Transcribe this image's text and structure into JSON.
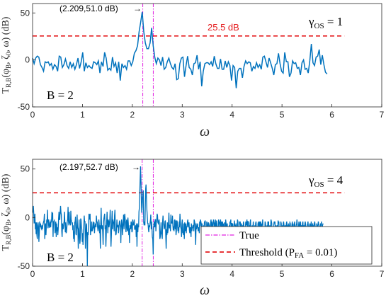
{
  "chart_data": [
    {
      "type": "line",
      "xlabel": "ω",
      "ylabel": "T_{R,B}(φ_B, ζ_0, ω) (dB)",
      "xlim": [
        0,
        7
      ],
      "ylim": [
        -50,
        60
      ],
      "xticks": [
        "0",
        "1",
        "2",
        "3",
        "4",
        "5",
        "6",
        "7"
      ],
      "yticks": [
        "-50",
        "0",
        "50"
      ],
      "grid": false,
      "series": [
        {
          "kind": "spectrum",
          "x_start": 0,
          "x_step": 0.0314,
          "values": [
            2,
            -4,
            2,
            4,
            3,
            -5,
            -8,
            -12,
            -2,
            -3,
            -2,
            -6,
            -4,
            -10,
            -5,
            -7,
            -12,
            4,
            3,
            -8,
            -5,
            1,
            -6,
            -9,
            -2,
            -8,
            -4,
            -10,
            -5,
            2,
            -9,
            -2,
            8,
            -12,
            -3,
            -8,
            -6,
            -8,
            -9,
            -2,
            -3,
            -5,
            -1,
            -14,
            -2,
            -7,
            8,
            2,
            -11,
            -9,
            -11,
            3,
            -7,
            -3,
            -14,
            -2,
            -22,
            -4,
            -8,
            -6,
            -10,
            -1,
            -1,
            -6,
            -2,
            7,
            10,
            15,
            30,
            40,
            51,
            30,
            18,
            12,
            12,
            18,
            34,
            15,
            3,
            -4,
            2,
            0,
            -6,
            3,
            -10,
            -8,
            -2,
            2,
            -4,
            -8,
            -10,
            -4,
            -21,
            -20,
            -4,
            2,
            3,
            -18,
            -6,
            4,
            -8,
            -10,
            -16,
            -4,
            -3,
            5,
            -10,
            -2,
            -28,
            -12,
            -4,
            -3,
            -3,
            -5,
            -2,
            -7,
            4,
            -4,
            -9,
            -9,
            1,
            -10,
            -10,
            -1,
            -8,
            -2,
            -6,
            -22,
            -6,
            -8,
            -30,
            -12,
            -9,
            -9,
            -19,
            -7,
            -1,
            -4,
            -2,
            -3,
            -12,
            -7,
            -9,
            -3,
            -8,
            -5,
            -10,
            3,
            4,
            -2,
            -8,
            2,
            -3,
            -9,
            -16,
            -5,
            -4,
            7,
            -4,
            -12,
            -14,
            8,
            -2,
            -2,
            -18,
            -14,
            -1,
            -4,
            -3,
            -9,
            -8,
            -16,
            -3,
            0,
            -10,
            -9,
            -14,
            -1,
            17,
            -3,
            -6,
            3,
            4,
            11,
            -5,
            5,
            -5,
            -13,
            -15
          ]
        },
        {
          "kind": "true",
          "x": [
            2.209,
            2.42
          ]
        },
        {
          "kind": "threshold",
          "y": 25.5
        }
      ],
      "annotations": {
        "peak": {
          "x": 2.209,
          "y": 51.0,
          "text": "(2.209,51.0 dB)"
        },
        "threshold_text": "25.5 dB",
        "gamma_text": "γOS = 1",
        "b_text": "B = 2"
      }
    },
    {
      "type": "line",
      "xlabel": "ω",
      "ylabel": "T_{R,B}(φ_B, ζ_0, ω) (dB)",
      "xlim": [
        0,
        7
      ],
      "ylim": [
        -50,
        60
      ],
      "xticks": [
        "0",
        "1",
        "2",
        "3",
        "4",
        "5",
        "6",
        "7"
      ],
      "yticks": [
        "-50",
        "0",
        "50"
      ],
      "grid": false,
      "series": [
        {
          "kind": "spectrum",
          "x_start": 0,
          "x_step": 0.0079,
          "values": [
            5,
            8,
            12,
            4,
            -6,
            -2,
            4,
            -12,
            -5,
            -17,
            -5,
            -18,
            -22,
            -8,
            -5,
            -9,
            -25,
            -15,
            -4,
            -10,
            -6,
            -8,
            -11,
            -12,
            -8,
            -12,
            -8,
            -6,
            -4,
            -3,
            4,
            -22,
            -12,
            -6,
            -18,
            -8,
            -2,
            -5,
            8,
            -11,
            -3,
            -2,
            -10,
            -10,
            -6,
            -4,
            -10,
            -2,
            -5,
            6,
            -2,
            5,
            -20,
            -5,
            -4,
            -3,
            -7,
            -16,
            -8,
            -4,
            -20,
            -6,
            -14,
            -10,
            -18,
            -12,
            -1,
            6,
            -2,
            -2,
            5,
            12,
            5,
            3,
            -14,
            -20,
            -6,
            -12,
            -11,
            -6,
            -4,
            6,
            -6,
            -15,
            -5,
            -16,
            -15,
            -10,
            -4,
            -2,
            11,
            -3,
            -8,
            6,
            -6,
            -5,
            -8,
            7,
            -2,
            -4,
            -6,
            -5,
            -13,
            -8,
            -22,
            -14,
            -25,
            -5,
            -4,
            1,
            -17,
            -18,
            -10,
            3,
            -10,
            -12,
            -32,
            -13,
            -2,
            -20,
            -27,
            -22,
            -1,
            -2,
            -10,
            -12,
            -25,
            -16,
            -28,
            -14,
            -10,
            2,
            -4,
            -4,
            -32,
            -20,
            -8,
            -6,
            -22,
            -50,
            -15,
            -18,
            -10,
            4,
            1,
            -2,
            4,
            -18,
            -12,
            -14,
            -4,
            -14,
            -13,
            -11,
            -4,
            -11,
            -5,
            -16,
            -10,
            -8,
            -6,
            -10,
            2,
            -5,
            -4,
            -10,
            -14,
            -11,
            -2,
            -6,
            -16,
            -8,
            -32,
            -6,
            10,
            -10,
            -12,
            -8,
            -15,
            -28,
            -6,
            -1,
            2,
            4,
            -12,
            -8,
            -30,
            -18,
            -4,
            6,
            -5,
            -16,
            -2,
            -4,
            -10,
            -6,
            -1,
            8,
            -14,
            -30,
            -18,
            -4,
            7,
            -12,
            -2,
            -6,
            -4,
            -14,
            2,
            8,
            -10,
            -18,
            -17,
            -11,
            -2,
            -10,
            -8,
            -8,
            -16,
            -12,
            -5,
            -3,
            -7,
            -10,
            -26,
            -8,
            -2,
            -6,
            -18,
            -10,
            -4,
            3,
            -12,
            -2,
            4,
            -2,
            -9,
            -15,
            -4,
            -2,
            -12,
            -14,
            0,
            -6,
            -18,
            -11,
            -26,
            -8,
            -10,
            -12,
            -4,
            -6,
            -15,
            -14,
            -2,
            -6,
            -8,
            -6,
            -2,
            -12,
            -12,
            -10,
            -8,
            -20,
            -6,
            -30,
            -6,
            -15,
            -8,
            -10,
            6,
            10,
            25,
            40,
            52.7,
            38,
            18,
            5,
            10,
            20,
            25,
            28,
            -5,
            -8,
            -4,
            -8,
            10,
            30,
            34,
            20,
            8,
            2,
            -6,
            -6,
            -12,
            -15,
            -8,
            -10,
            -6,
            -3,
            3,
            -12,
            -4,
            -12,
            -20,
            -22,
            -38,
            -12,
            -6,
            -4,
            -10,
            -2,
            -2,
            -14,
            -5,
            -3,
            4,
            2,
            -5,
            -6,
            -4,
            -2,
            -8,
            -22,
            -20,
            -14,
            -5,
            -16,
            -18,
            -22,
            -4,
            2,
            -6,
            -8,
            -12,
            -10,
            -4,
            -3,
            -20,
            -32,
            -12,
            -18,
            -5,
            -16,
            -12,
            -4,
            5,
            -11,
            -8,
            -8,
            -14,
            3,
            -6,
            -4,
            -6,
            2,
            -8,
            -13,
            -9,
            -14,
            -3,
            -2,
            -12,
            -3,
            -18,
            -14,
            -3,
            -4,
            -9,
            -14,
            -10,
            -16,
            -4,
            -10,
            4,
            -4,
            -10,
            -12,
            -20,
            -6,
            -2,
            -16,
            -14,
            -18,
            -6,
            -22,
            -5,
            -10,
            -14,
            -6,
            -16,
            -9,
            -10,
            -4,
            -2,
            -8,
            -10,
            -5,
            -13,
            -16,
            -10,
            -12,
            -20,
            -6,
            -14,
            -11,
            -10,
            -8,
            -8,
            -14,
            -2,
            -4,
            -6,
            -18,
            -28,
            -6,
            -12,
            -10,
            -8,
            -6,
            -14,
            -11,
            -10,
            -16,
            -4,
            -9,
            -2,
            -4,
            -6,
            -20,
            -6,
            -11,
            -12,
            -16,
            -8,
            -12,
            -5,
            -4,
            -3,
            -10,
            -16,
            -18,
            -4,
            -6,
            -10,
            -20,
            -5,
            -6,
            -8,
            -12,
            -22,
            -9,
            -4,
            -2,
            -14,
            -4,
            -6,
            -12,
            -10,
            -2,
            -4,
            -6,
            -18,
            -7,
            -2,
            -12,
            -14,
            -3,
            -8,
            -10,
            -16,
            -12,
            -2,
            -5,
            -4,
            -12,
            -8,
            -2,
            -8,
            -10,
            -4,
            -11,
            -4,
            -12,
            -6,
            -14,
            -20,
            -5,
            -8,
            -12,
            -2,
            -6,
            -10,
            -10,
            -6,
            -14,
            -12,
            -22,
            -16,
            -8,
            -12,
            -4,
            -6,
            -2,
            -20,
            -6,
            -6,
            -18,
            -6,
            -15,
            -12,
            -10,
            -3,
            -8,
            -8,
            -18,
            -6,
            -11,
            -14,
            -10,
            -2,
            -4,
            -22,
            -14,
            -12,
            -4,
            -6,
            -4,
            -12,
            -14,
            -6,
            -10,
            -30,
            -8,
            -14,
            -4,
            -6,
            -12,
            -15,
            -22,
            -10,
            -4,
            -8,
            -6,
            -2,
            -16,
            -4,
            -4,
            -5,
            -18,
            -8,
            -14,
            -6,
            -2,
            -15,
            -10,
            -16,
            -8,
            -12,
            -12,
            -4,
            -10,
            -12,
            -20,
            -8,
            -18,
            -6,
            -4,
            -10,
            -16,
            -14,
            -12,
            -6,
            -4,
            -8,
            -12,
            -5,
            -4,
            -12,
            -4,
            -10,
            -16,
            -6,
            -8,
            -2,
            -14,
            -12,
            -18,
            -14,
            -16,
            -4,
            -6,
            -10,
            -12,
            -22,
            -8,
            -20,
            -4,
            -6,
            -4,
            -20,
            -12,
            -8,
            -16,
            -10,
            -2,
            -4,
            -6,
            -30,
            -10,
            -12,
            -14,
            -8,
            -4,
            -6,
            -4,
            -12,
            -14,
            -8,
            -20,
            -10,
            -8,
            -12,
            -3,
            -6,
            -4,
            -15,
            -10,
            -12,
            -16,
            -4,
            -6,
            -14,
            -18,
            -8,
            -12,
            -6,
            -4,
            -8,
            -14,
            -10,
            -8,
            -12,
            -10,
            -6,
            -4,
            -20,
            -8,
            -14,
            -6,
            -10,
            -12,
            -8,
            -5,
            -6,
            -12,
            -14,
            -10,
            -8,
            -4,
            -12,
            -6,
            -18,
            -14,
            -8,
            -4,
            -10,
            -16,
            -12,
            -8,
            -6,
            -2,
            -10,
            -14,
            -12,
            -8,
            -4,
            -12,
            -10,
            -6,
            -4,
            -16,
            -8,
            -10,
            -12,
            -6,
            -4,
            -14,
            -10,
            -8,
            -12,
            -6,
            -4,
            -8,
            -12,
            -16,
            -10,
            -8,
            -6,
            -4,
            -12,
            -14,
            -10,
            -8,
            -6,
            -10,
            -12,
            -4,
            -8,
            -14,
            -10,
            -6,
            -12,
            -8,
            -10,
            -6,
            -4,
            -8,
            -12,
            -10,
            -14,
            -6,
            -8,
            -12,
            -10,
            -4,
            -6,
            -8,
            -12,
            -14,
            -10,
            -6,
            -8,
            -4,
            -12,
            -10,
            -8,
            -6
          ]
        },
        {
          "kind": "true",
          "x": [
            2.197,
            2.42
          ]
        },
        {
          "kind": "threshold",
          "y": 25.5
        }
      ],
      "annotations": {
        "peak": {
          "x": 2.197,
          "y": 52.7,
          "text": "(2.197,52.7 dB)"
        },
        "gamma_text": "γOS = 4",
        "b_text": "B = 2"
      },
      "legend": {
        "placement": "bottom-right",
        "entries": [
          {
            "label": "True",
            "style": "magenta dash-dot"
          },
          {
            "label": "Threshold (P_FA = 0.01)",
            "style": "red dashed"
          }
        ]
      }
    }
  ],
  "style": {
    "spectrum_color": "#0072BD",
    "true_color": "#E020E0",
    "threshold_color": "#E41A1C",
    "axis_color": "#262626"
  },
  "text": {
    "legend_true": "True",
    "legend_threshold_pre": "Threshold (P",
    "legend_threshold_sub": "FA",
    "legend_threshold_post": " = 0.01)",
    "xlabel": "ω",
    "ylabel_pre": "T",
    "ylabel_sub": "R,B",
    "ylabel_post": "(φ",
    "ylabel_sub2": "B",
    "ylabel_mid": ", ζ",
    "ylabel_sub3": "0",
    "ylabel_end": ", ω) (dB)",
    "gamma_pre": "γ",
    "gamma_sub": "OS",
    "gamma_1": " = 1",
    "gamma_4": " = 4",
    "b_label": "B = 2"
  }
}
